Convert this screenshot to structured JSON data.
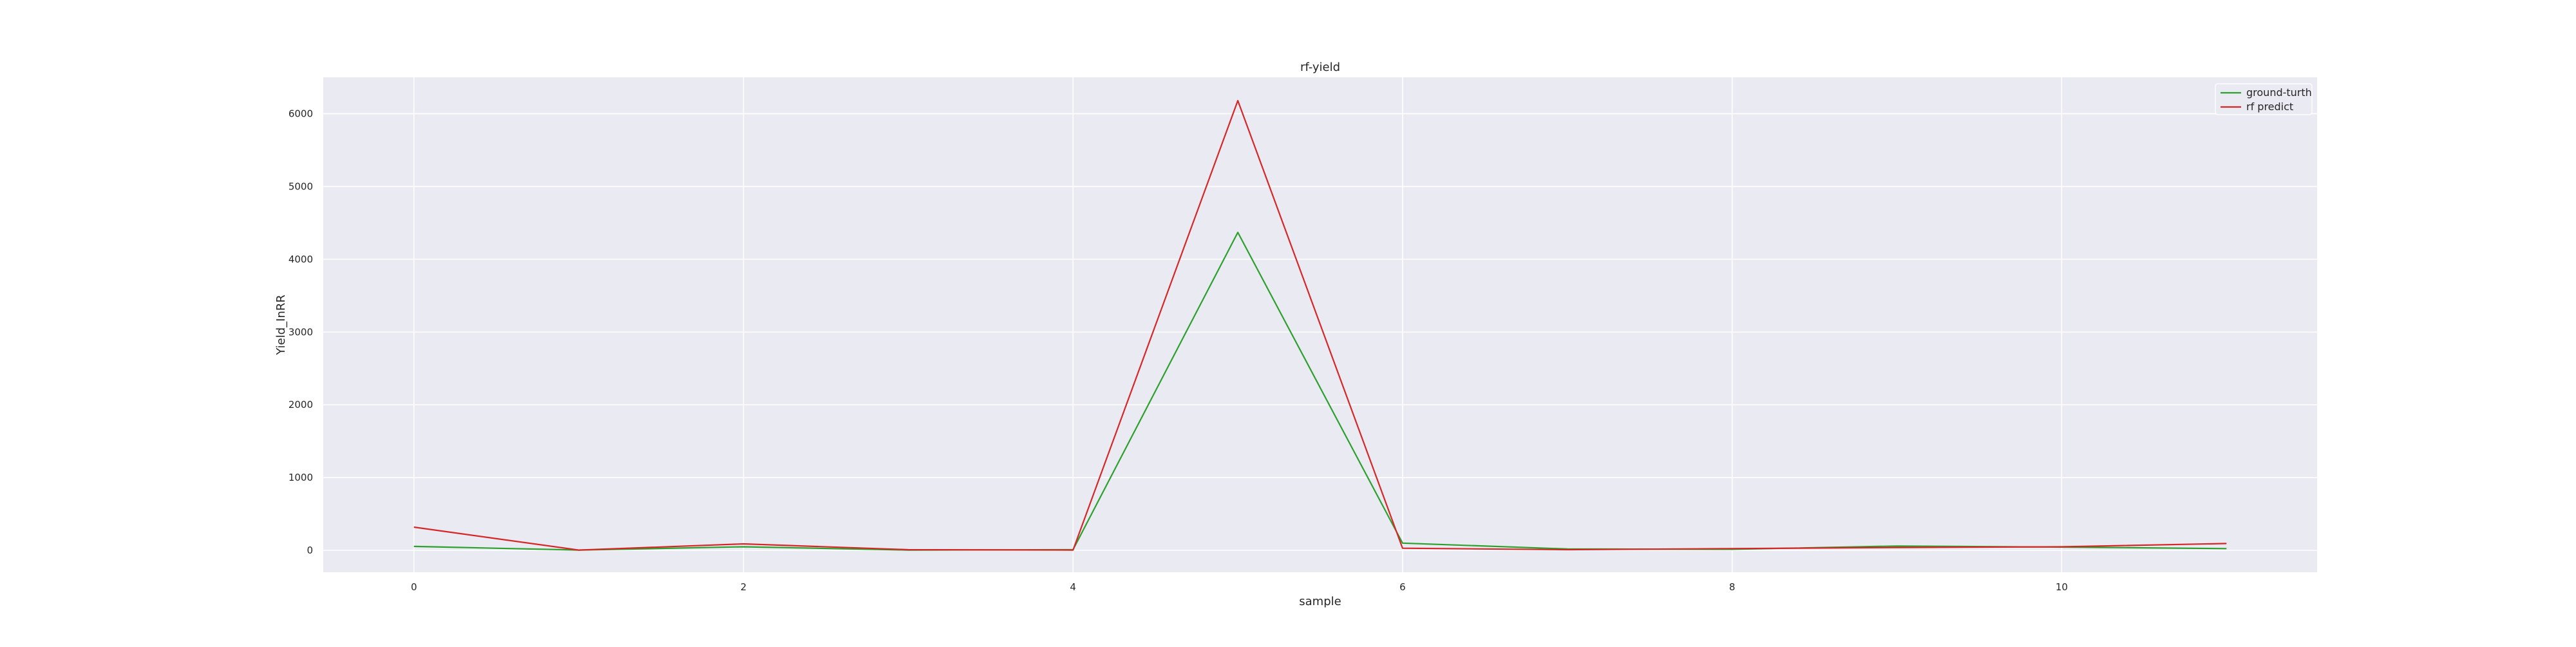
{
  "chart_data": {
    "type": "line",
    "title": "rf-yield",
    "xlabel": "sample",
    "ylabel": "Yield_InRR",
    "x": [
      0,
      1,
      2,
      3,
      4,
      5,
      6,
      7,
      8,
      9,
      10,
      11
    ],
    "series": [
      {
        "name": "ground-turth",
        "color": "#2ca02c",
        "values": [
          55,
          5,
          50,
          5,
          10,
          4370,
          100,
          20,
          15,
          60,
          45,
          25
        ]
      },
      {
        "name": "rf predict",
        "color": "#d62728",
        "values": [
          320,
          5,
          90,
          10,
          5,
          6180,
          30,
          10,
          25,
          40,
          50,
          95
        ]
      }
    ],
    "xlim": [
      -0.55,
      11.55
    ],
    "ylim": [
      -300,
      6500
    ],
    "xticks": [
      0,
      2,
      4,
      6,
      8,
      10
    ],
    "yticks": [
      0,
      1000,
      2000,
      3000,
      4000,
      5000,
      6000
    ],
    "grid": true,
    "legend_position": "top-right",
    "background": "#eaeaf2",
    "grid_color": "#ffffff"
  }
}
